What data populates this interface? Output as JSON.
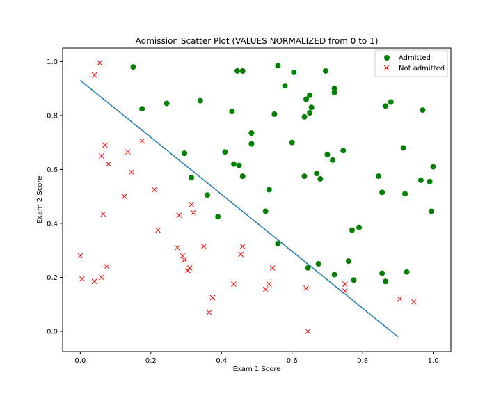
{
  "chart_data": {
    "type": "scatter",
    "title": "Admission Scatter Plot (VALUES NORMALIZED from 0 to 1)",
    "xlabel": "Exam 1 Score",
    "ylabel": "Exam 2 Score",
    "xlim": [
      -0.05,
      1.05
    ],
    "ylim": [
      -0.075,
      1.05
    ],
    "xticks": [
      0.0,
      0.2,
      0.4,
      0.6,
      0.8,
      1.0
    ],
    "xtick_labels": [
      "0.0",
      "0.2",
      "0.4",
      "0.6",
      "0.8",
      "1.0"
    ],
    "yticks": [
      0.0,
      0.2,
      0.4,
      0.6,
      0.8,
      1.0
    ],
    "ytick_labels": [
      "0.0",
      "0.2",
      "0.4",
      "0.6",
      "0.8",
      "1.0"
    ],
    "grid": false,
    "legend": {
      "position": "top-right",
      "entries": [
        "Admitted",
        "Not admitted"
      ]
    },
    "series": [
      {
        "name": "Admitted",
        "marker": "circle",
        "color": "#008000",
        "points": [
          [
            0.15,
            0.98
          ],
          [
            0.175,
            0.825
          ],
          [
            0.245,
            0.845
          ],
          [
            0.295,
            0.66
          ],
          [
            0.315,
            0.57
          ],
          [
            0.34,
            0.855
          ],
          [
            0.36,
            0.505
          ],
          [
            0.39,
            0.425
          ],
          [
            0.41,
            0.665
          ],
          [
            0.43,
            0.815
          ],
          [
            0.435,
            0.62
          ],
          [
            0.445,
            0.965
          ],
          [
            0.45,
            0.615
          ],
          [
            0.46,
            0.965
          ],
          [
            0.46,
            0.575
          ],
          [
            0.485,
            0.735
          ],
          [
            0.485,
            0.695
          ],
          [
            0.525,
            0.445
          ],
          [
            0.535,
            0.525
          ],
          [
            0.55,
            0.805
          ],
          [
            0.56,
            0.985
          ],
          [
            0.56,
            0.325
          ],
          [
            0.58,
            0.91
          ],
          [
            0.6,
            0.7
          ],
          [
            0.605,
            0.96
          ],
          [
            0.635,
            0.795
          ],
          [
            0.635,
            0.575
          ],
          [
            0.64,
            0.86
          ],
          [
            0.645,
            0.235
          ],
          [
            0.65,
            0.81
          ],
          [
            0.65,
            0.875
          ],
          [
            0.655,
            0.83
          ],
          [
            0.67,
            0.585
          ],
          [
            0.675,
            0.25
          ],
          [
            0.68,
            0.565
          ],
          [
            0.695,
            0.965
          ],
          [
            0.7,
            0.655
          ],
          [
            0.715,
            0.635
          ],
          [
            0.72,
            0.9
          ],
          [
            0.72,
            0.885
          ],
          [
            0.72,
            0.21
          ],
          [
            0.745,
            0.67
          ],
          [
            0.76,
            0.26
          ],
          [
            0.77,
            0.375
          ],
          [
            0.775,
            0.19
          ],
          [
            0.79,
            0.385
          ],
          [
            0.845,
            0.575
          ],
          [
            0.855,
            0.515
          ],
          [
            0.855,
            0.215
          ],
          [
            0.865,
            0.835
          ],
          [
            0.865,
            0.185
          ],
          [
            0.88,
            0.85
          ],
          [
            0.915,
            0.68
          ],
          [
            0.92,
            0.51
          ],
          [
            0.925,
            0.22
          ],
          [
            0.965,
            0.56
          ],
          [
            0.97,
            0.82
          ],
          [
            0.99,
            0.555
          ],
          [
            0.995,
            0.445
          ],
          [
            1.0,
            0.61
          ]
        ]
      },
      {
        "name": "Not admitted",
        "marker": "x",
        "color": "#ff0000",
        "points": [
          [
            0.0,
            0.28
          ],
          [
            0.005,
            0.195
          ],
          [
            0.04,
            0.95
          ],
          [
            0.04,
            0.185
          ],
          [
            0.055,
            0.995
          ],
          [
            0.06,
            0.65
          ],
          [
            0.06,
            0.2
          ],
          [
            0.065,
            0.435
          ],
          [
            0.07,
            0.69
          ],
          [
            0.075,
            0.24
          ],
          [
            0.08,
            0.62
          ],
          [
            0.125,
            0.5
          ],
          [
            0.135,
            0.665
          ],
          [
            0.145,
            0.59
          ],
          [
            0.175,
            0.705
          ],
          [
            0.21,
            0.525
          ],
          [
            0.22,
            0.375
          ],
          [
            0.275,
            0.31
          ],
          [
            0.28,
            0.43
          ],
          [
            0.29,
            0.28
          ],
          [
            0.295,
            0.265
          ],
          [
            0.305,
            0.225
          ],
          [
            0.31,
            0.235
          ],
          [
            0.315,
            0.47
          ],
          [
            0.32,
            0.44
          ],
          [
            0.35,
            0.315
          ],
          [
            0.365,
            0.07
          ],
          [
            0.375,
            0.125
          ],
          [
            0.435,
            0.175
          ],
          [
            0.455,
            0.285
          ],
          [
            0.46,
            0.315
          ],
          [
            0.525,
            0.155
          ],
          [
            0.535,
            0.175
          ],
          [
            0.545,
            0.235
          ],
          [
            0.64,
            0.16
          ],
          [
            0.645,
            0.0
          ],
          [
            0.75,
            0.175
          ],
          [
            0.75,
            0.15
          ],
          [
            0.905,
            0.12
          ],
          [
            0.945,
            0.11
          ]
        ]
      },
      {
        "name": "",
        "marker": "line",
        "color": "#1f77b4",
        "points": [
          [
            0.0,
            0.93
          ],
          [
            0.9,
            -0.02
          ]
        ]
      }
    ]
  }
}
